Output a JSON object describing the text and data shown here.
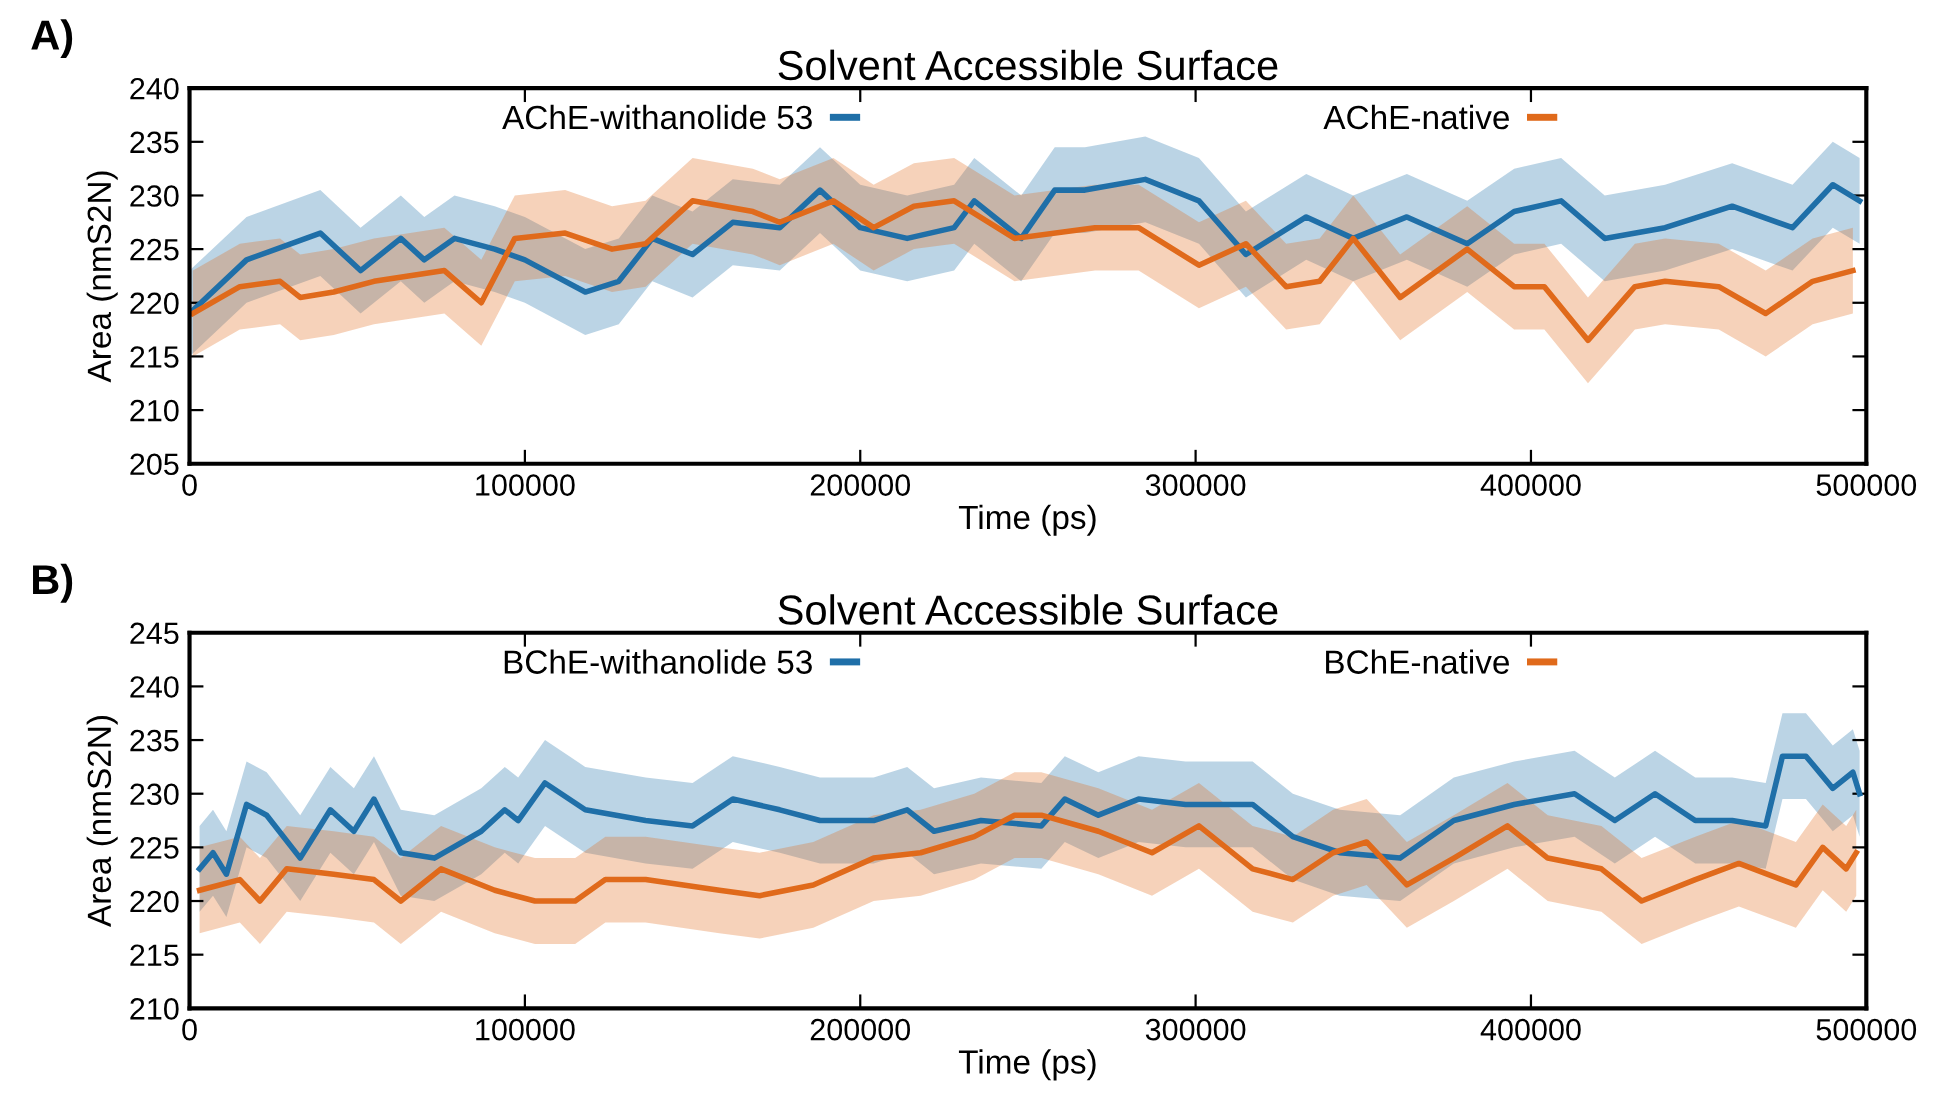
{
  "chart_data": [
    {
      "type": "line",
      "title": "Solvent Accessible Surface",
      "xlabel": "Time (ps)",
      "ylabel": "Area (nmS2N)",
      "annotations": [
        "A)"
      ],
      "xlim": [
        0,
        500000
      ],
      "xticks": [
        0,
        100000,
        200000,
        300000,
        400000,
        500000
      ],
      "ylim": [
        205,
        240
      ],
      "yticks": [
        205,
        210,
        215,
        220,
        225,
        230,
        235,
        240
      ],
      "legend": "top",
      "grid": false,
      "series": [
        {
          "name": "AChE-withanolide 53",
          "color": "#1f6fa8",
          "x": [
            0,
            17000,
            39000,
            51000,
            63000,
            70000,
            79000,
            91000,
            100000,
            118000,
            128000,
            138000,
            150000,
            162000,
            176000,
            188000,
            200000,
            214000,
            228000,
            234000,
            248000,
            258000,
            267000,
            285000,
            301000,
            315000,
            333000,
            347000,
            363000,
            381000,
            395000,
            409000,
            422000,
            440000,
            460000,
            478000,
            490000,
            498000
          ],
          "values": [
            219,
            224,
            226.5,
            223,
            226,
            224,
            226,
            225,
            224,
            221,
            222,
            226,
            224.5,
            227.5,
            227,
            230.5,
            227,
            226,
            227,
            229.5,
            226,
            230.5,
            230.5,
            231.5,
            229.5,
            224.5,
            228,
            226,
            228,
            225.5,
            228.5,
            229.5,
            226,
            227,
            229,
            227,
            231,
            229.5
          ],
          "lower": [
            215,
            220,
            222.5,
            219,
            222,
            220,
            222,
            221,
            220,
            217,
            218,
            222,
            220.5,
            223.5,
            223,
            226.5,
            223,
            222,
            223,
            225.5,
            222,
            226.5,
            226.5,
            227.5,
            225.5,
            220.5,
            224,
            222,
            224,
            221.5,
            224.5,
            225.5,
            222,
            223,
            225,
            223,
            227,
            225.5
          ],
          "upper": [
            223,
            228,
            230.5,
            227,
            230,
            228,
            230,
            229,
            228,
            225,
            226,
            230,
            228.5,
            231.5,
            231,
            234.5,
            231,
            230,
            231,
            233.5,
            230,
            234.5,
            234.5,
            235.5,
            233.5,
            228.5,
            232,
            230,
            232,
            229.5,
            232.5,
            233.5,
            230,
            231,
            233,
            231,
            235,
            233.5
          ]
        },
        {
          "name": "AChE-native",
          "color": "#e06a1b",
          "x": [
            1000,
            15000,
            27000,
            33000,
            43000,
            55000,
            76000,
            87000,
            97000,
            112000,
            126000,
            136000,
            150000,
            168000,
            176000,
            192000,
            204000,
            216000,
            228000,
            246000,
            270000,
            283000,
            301000,
            315000,
            327000,
            337000,
            347000,
            361000,
            381000,
            395000,
            404000,
            417000,
            431000,
            440000,
            456000,
            470000,
            484000,
            496000
          ],
          "values": [
            219,
            221.5,
            222,
            220.5,
            221,
            222,
            223,
            220,
            226,
            226.5,
            225,
            225.5,
            229.5,
            228.5,
            227.5,
            229.5,
            227,
            229,
            229.5,
            226,
            227,
            227,
            223.5,
            225.5,
            221.5,
            222,
            226,
            220.5,
            225,
            221.5,
            221.5,
            216.5,
            221.5,
            222,
            221.5,
            219,
            222,
            223
          ],
          "lower": [
            215,
            217.5,
            218,
            216.5,
            217,
            218,
            219,
            216,
            222,
            222.5,
            221,
            221.5,
            225.5,
            224.5,
            223.5,
            225.5,
            223,
            225,
            225.5,
            222,
            223,
            223,
            219.5,
            221.5,
            217.5,
            218,
            222,
            216.5,
            221,
            217.5,
            217.5,
            212.5,
            217.5,
            218,
            217.5,
            215,
            218,
            219
          ],
          "upper": [
            223,
            225.5,
            226,
            224.5,
            225,
            226,
            227,
            224,
            230,
            230.5,
            229,
            229.5,
            233.5,
            232.5,
            231.5,
            233.5,
            231,
            233,
            233.5,
            230,
            231,
            231,
            227.5,
            229.5,
            225.5,
            226,
            230,
            224.5,
            229,
            225.5,
            225.5,
            220.5,
            225.5,
            226,
            225.5,
            223,
            226,
            227
          ]
        }
      ]
    },
    {
      "type": "line",
      "title": "Solvent Accessible Surface",
      "xlabel": "Time (ps)",
      "ylabel": "Area (nmS2N)",
      "annotations": [
        "B)"
      ],
      "xlim": [
        0,
        500000
      ],
      "xticks": [
        0,
        100000,
        200000,
        300000,
        400000,
        500000
      ],
      "ylim": [
        210,
        245
      ],
      "yticks": [
        210,
        215,
        220,
        225,
        230,
        235,
        240,
        245
      ],
      "legend": "top",
      "grid": false,
      "series": [
        {
          "name": "BChE-withanolide 53",
          "color": "#1f6fa8",
          "x": [
            3000,
            7000,
            11000,
            17000,
            23000,
            33000,
            42000,
            49000,
            55000,
            63000,
            73000,
            87000,
            94000,
            98000,
            106000,
            118000,
            136000,
            150000,
            162000,
            176000,
            188000,
            204000,
            214000,
            222000,
            236000,
            254000,
            261000,
            271000,
            283000,
            297000,
            317000,
            329000,
            343000,
            361000,
            377000,
            395000,
            413000,
            425000,
            437000,
            449000,
            460000,
            470000,
            475000,
            482000,
            490000,
            496000,
            498000
          ],
          "values": [
            223,
            224.5,
            222.5,
            229,
            228,
            224,
            228.5,
            226.5,
            229.5,
            224.5,
            224,
            226.5,
            228.5,
            227.5,
            231,
            228.5,
            227.5,
            227,
            229.5,
            228.5,
            227.5,
            227.5,
            228.5,
            226.5,
            227.5,
            227,
            229.5,
            228,
            229.5,
            229,
            229,
            226,
            224.5,
            224,
            227.5,
            229,
            230,
            227.5,
            230,
            227.5,
            227.5,
            227,
            233.5,
            233.5,
            230.5,
            232,
            230
          ],
          "lower": [
            219,
            220.5,
            218.5,
            225,
            224,
            220,
            224.5,
            222.5,
            225.5,
            220.5,
            220,
            222.5,
            224.5,
            223.5,
            227,
            224.5,
            223.5,
            223,
            225.5,
            224.5,
            223.5,
            223.5,
            224.5,
            222.5,
            223.5,
            223,
            225.5,
            224,
            225.5,
            225,
            225,
            222,
            220.5,
            220,
            223.5,
            225,
            226,
            223.5,
            226,
            223.5,
            223.5,
            223,
            229.5,
            229.5,
            226.5,
            228,
            226
          ],
          "upper": [
            227,
            228.5,
            226.5,
            233,
            232,
            228,
            232.5,
            230.5,
            233.5,
            228.5,
            228,
            230.5,
            232.5,
            231.5,
            235,
            232.5,
            231.5,
            231,
            233.5,
            232.5,
            231.5,
            231.5,
            232.5,
            230.5,
            231.5,
            231,
            233.5,
            232,
            233.5,
            233,
            233,
            230,
            228.5,
            228,
            231.5,
            233,
            234,
            231.5,
            234,
            231.5,
            231.5,
            231,
            237.5,
            237.5,
            234.5,
            236,
            234
          ]
        },
        {
          "name": "BChE-native",
          "color": "#e06a1b",
          "x": [
            3000,
            15000,
            21000,
            29000,
            43000,
            55000,
            63000,
            75000,
            91000,
            103000,
            115000,
            124000,
            136000,
            158000,
            170000,
            186000,
            204000,
            218000,
            234000,
            246000,
            254000,
            271000,
            287000,
            301000,
            317000,
            329000,
            341000,
            351000,
            363000,
            377000,
            393000,
            405000,
            421000,
            433000,
            449000,
            462000,
            479000,
            487000,
            494000,
            497000
          ],
          "values": [
            221,
            222,
            220,
            223,
            222.5,
            222,
            220,
            223,
            221,
            220,
            220,
            222,
            222,
            221,
            220.5,
            221.5,
            224,
            224.5,
            226,
            228,
            228,
            226.5,
            224.5,
            227,
            223,
            222,
            224.5,
            225.5,
            221.5,
            224,
            227,
            224,
            223,
            220,
            222,
            223.5,
            221.5,
            225,
            223,
            224.5
          ],
          "lower": [
            217,
            218,
            216,
            219,
            218.5,
            218,
            216,
            219,
            217,
            216,
            216,
            218,
            218,
            217,
            216.5,
            217.5,
            220,
            220.5,
            222,
            224,
            224,
            222.5,
            220.5,
            223,
            219,
            218,
            220.5,
            221.5,
            217.5,
            220,
            223,
            220,
            219,
            216,
            218,
            219.5,
            217.5,
            221,
            219,
            220.5
          ],
          "upper": [
            225,
            226,
            224,
            227,
            226.5,
            226,
            224,
            227,
            225,
            224,
            224,
            226,
            226,
            225,
            224.5,
            225.5,
            228,
            228.5,
            230,
            232,
            232,
            230.5,
            228.5,
            231,
            227,
            226,
            228.5,
            229.5,
            225.5,
            228,
            231,
            228,
            227,
            224,
            226,
            227.5,
            225.5,
            229,
            227,
            228.5
          ]
        }
      ]
    }
  ]
}
